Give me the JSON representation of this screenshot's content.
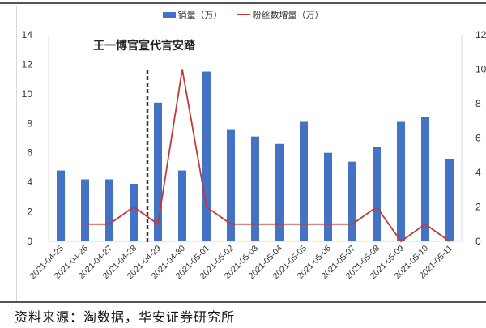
{
  "legend": {
    "bar_label": "销量（万）",
    "line_label": "粉丝数增量（万）"
  },
  "annotation": {
    "text": "王一博官宣代言安踏",
    "marker_after_category": "2021-04-28"
  },
  "footer": {
    "source": "资料来源：淘数据，华安证券研究所"
  },
  "colors": {
    "bar": "#4472c4",
    "line": "#c0393b",
    "dashed_marker": "#333333"
  },
  "chart_data": {
    "type": "bar",
    "title": "",
    "xlabel": "",
    "ylabel": "销量（万）",
    "y2label": "粉丝数增量（万）",
    "ylim": [
      0,
      14
    ],
    "y2lim": [
      0,
      12
    ],
    "yticks": [
      0,
      2,
      4,
      6,
      8,
      10,
      12,
      14
    ],
    "y2ticks": [
      0,
      2,
      4,
      6,
      8,
      10,
      12
    ],
    "grid": false,
    "legend_position": "top",
    "categories": [
      "2021-04-25",
      "2021-04-26",
      "2021-04-27",
      "2021-04-28",
      "2021-04-29",
      "2021-04-30",
      "2021-05-01",
      "2021-05-02",
      "2021-05-03",
      "2021-05-04",
      "2021-05-05",
      "2021-05-06",
      "2021-05-07",
      "2021-05-08",
      "2021-05-09",
      "2021-05-10",
      "2021-05-11"
    ],
    "series": [
      {
        "name": "销量（万）",
        "type": "bar",
        "axis": "left",
        "values": [
          4.8,
          4.2,
          4.2,
          3.9,
          9.4,
          4.8,
          11.5,
          7.6,
          7.1,
          6.6,
          8.1,
          6.0,
          5.4,
          6.4,
          8.1,
          8.4,
          5.6
        ]
      },
      {
        "name": "粉丝数增量（万）",
        "type": "line",
        "axis": "right",
        "values": [
          null,
          1,
          1,
          2,
          1,
          10,
          2,
          1,
          1,
          1,
          1,
          1,
          1,
          2,
          0,
          1,
          0
        ]
      }
    ],
    "annotations": [
      {
        "text": "王一博官宣代言安踏",
        "type": "vertical-dashed-line",
        "position": "between 2021-04-28 and 2021-04-29"
      }
    ]
  }
}
